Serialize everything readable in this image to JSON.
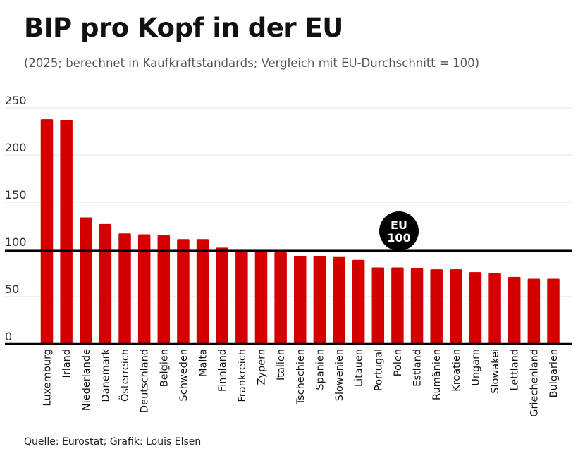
{
  "title": "BIP pro Kopf in der EU",
  "subtitle": "(2025; berechnet in Kaufkraftstandards; Vergleich mit EU-Durchschnitt = 100)",
  "source": "Quelle: Eurostat; Grafik: Louis Elsen",
  "colors": {
    "bar": "#d40000",
    "reference_line": "#000000"
  },
  "chart_data": {
    "type": "bar",
    "categories": [
      "Luxemburg",
      "Irland",
      "Niederlande",
      "Dänemark",
      "Österreich",
      "Deutschland",
      "Belgien",
      "Schweden",
      "Malta",
      "Finnland",
      "Frankreich",
      "Zypern",
      "Italien",
      "Tschechien",
      "Spanien",
      "Slowenien",
      "Litauen",
      "Portugal",
      "Polen",
      "Estland",
      "Rumänien",
      "Kroatien",
      "Ungarn",
      "Slowakei",
      "Lettland",
      "Griechenland",
      "Bulgarien"
    ],
    "values": [
      238,
      237,
      134,
      127,
      117,
      116,
      115,
      111,
      111,
      102,
      98,
      98,
      97,
      93,
      93,
      92,
      89,
      81,
      81,
      80,
      79,
      79,
      76,
      75,
      71,
      69,
      69
    ],
    "yticks": [
      "0",
      "50",
      "100",
      "150",
      "200",
      "250"
    ],
    "ylim": [
      0,
      250
    ],
    "grid": true,
    "reference": {
      "value": 100,
      "label_line1": "EU",
      "label_line2": "100"
    }
  }
}
